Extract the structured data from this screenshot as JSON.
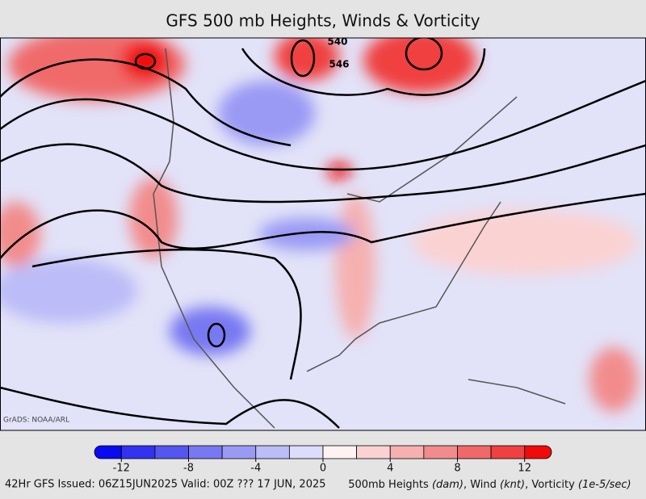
{
  "header": {
    "title": "GFS 500 mb Heights, Winds & Vorticity"
  },
  "map": {
    "contour_labels": [
      "540",
      "546"
    ],
    "credit": "GrADS: NOAA/ARL"
  },
  "colorbar": {
    "lim": [
      -13.6,
      13.6
    ],
    "bins": [
      -12,
      -10,
      -8,
      -6,
      -4,
      -2,
      0,
      2,
      4,
      6,
      8,
      10,
      12
    ],
    "colors": [
      "#0a0af0",
      "#3232f0",
      "#5555f0",
      "#7878f2",
      "#9a9af5",
      "#bcbcf8",
      "#dcdcfb",
      "#fff2f2",
      "#fbd2d2",
      "#f6b0b0",
      "#f28c8c",
      "#f06868",
      "#f04040",
      "#f00a0a"
    ],
    "ticks": [
      -12,
      -8,
      -4,
      0,
      4,
      8,
      12
    ]
  },
  "footer": {
    "left": "42Hr GFS Issued: 06Z15JUN2025 Valid: 00Z ??? 17 JUN, 2025",
    "right": [
      "500mb Heights ",
      "(dam)",
      ", Wind ",
      "(knt)",
      ", Vorticity ",
      "(1e-5/sec)"
    ]
  }
}
